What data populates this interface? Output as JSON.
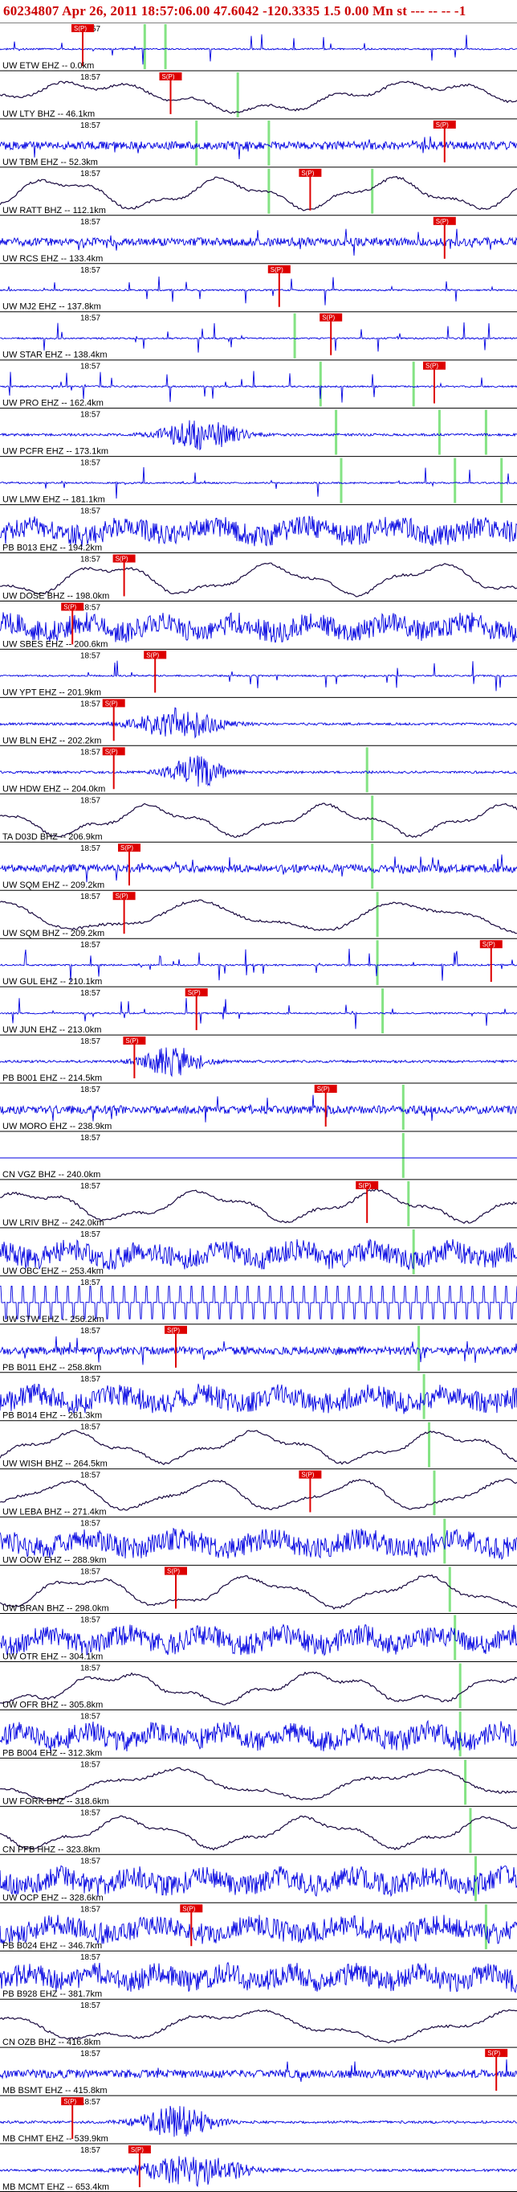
{
  "header": {
    "event_id": "60234807",
    "date": "Apr 26, 2011",
    "time": "18:57:06.00",
    "lat": "47.6042",
    "lon": "-120.3335",
    "depth": "1.5",
    "mag": "0.00",
    "mag_type": "Mn",
    "status": "st --- -- -- --",
    "flag": "-1",
    "full_text": "60234807 Apr 26, 2011 18:57:06.00   47.6042 -120.3335  1.5 0.00 Mn st --- -- --  -1"
  },
  "colors": {
    "background": "#ffffff",
    "trace_blue": "#0000e0",
    "trace_dark": "#1a0a40",
    "pick_green": "#66dd66",
    "pick_red": "#dd0000",
    "divider": "#000000",
    "header_red": "#cc0000"
  },
  "time_label": "18:57",
  "pick_label": "S(P)",
  "chart_data": {
    "type": "seismogram-stack",
    "title": "60234807 Apr 26, 2011 18:57:06.00   47.6042 -120.3335  1.5 0.00 Mn st --- -- --  -1",
    "xlabel": "",
    "ylabel": "",
    "channels": [
      {
        "label": "UW ETW EHZ -- 0.0km",
        "style": "spiky",
        "color": "blue",
        "red_picks": [
          0.16
        ],
        "green_picks": [
          0.28,
          0.32
        ]
      },
      {
        "label": "UW LTY BHZ -- 46.1km",
        "style": "long",
        "color": "dark",
        "red_picks": [
          0.33
        ],
        "green_picks": [
          0.46
        ]
      },
      {
        "label": "UW TBM EHZ -- 52.3km",
        "style": "noise",
        "color": "blue",
        "red_picks": [
          0.86
        ],
        "green_picks": [
          0.38,
          0.52
        ]
      },
      {
        "label": "UW RATT BHZ -- 112.1km",
        "style": "long",
        "color": "dark",
        "red_picks": [
          0.6
        ],
        "green_picks": [
          0.52,
          0.72
        ]
      },
      {
        "label": "UW RCS EHZ -- 133.4km",
        "style": "noise",
        "color": "blue",
        "red_picks": [
          0.86
        ],
        "green_picks": []
      },
      {
        "label": "UW MJ2 EHZ -- 137.8km",
        "style": "spiky",
        "color": "blue",
        "red_picks": [
          0.54
        ],
        "green_picks": []
      },
      {
        "label": "UW STAR EHZ -- 138.4km",
        "style": "spiky",
        "color": "blue",
        "red_picks": [
          0.64
        ],
        "green_picks": [
          0.57
        ]
      },
      {
        "label": "UW PRO EHZ -- 162.4km",
        "style": "spiky",
        "color": "blue",
        "red_picks": [
          0.84
        ],
        "green_picks": [
          0.62,
          0.8
        ]
      },
      {
        "label": "UW PCFR EHZ -- 173.1km",
        "style": "bursts",
        "color": "blue",
        "red_picks": [],
        "green_picks": [
          0.65,
          0.85,
          0.94
        ]
      },
      {
        "label": "UW LMW EHZ -- 181.1km",
        "style": "spiky",
        "color": "blue",
        "red_picks": [],
        "green_picks": [
          0.66,
          0.88,
          0.97
        ]
      },
      {
        "label": "PB B013 EHZ -- 194.2km",
        "style": "dense",
        "color": "blue",
        "red_picks": [],
        "green_picks": []
      },
      {
        "label": "UW DOSE BHZ -- 198.0km",
        "style": "long",
        "color": "dark",
        "red_picks": [
          0.24
        ],
        "green_picks": []
      },
      {
        "label": "UW SBES EHZ -- 200.6km",
        "style": "dense",
        "color": "blue",
        "red_picks": [
          0.14
        ],
        "green_picks": []
      },
      {
        "label": "UW YPT EHZ -- 201.9km",
        "style": "spiky",
        "color": "blue",
        "red_picks": [
          0.3
        ],
        "green_picks": []
      },
      {
        "label": "UW BLN EHZ -- 202.2km",
        "style": "bursts",
        "color": "blue",
        "red_picks": [
          0.22
        ],
        "green_picks": []
      },
      {
        "label": "UW HDW EHZ -- 204.0km",
        "style": "bursts",
        "color": "blue",
        "red_picks": [
          0.22
        ],
        "green_picks": [
          0.71
        ]
      },
      {
        "label": "TA D03D BHZ -- 206.9km",
        "style": "long",
        "color": "dark",
        "red_picks": [],
        "green_picks": [
          0.72
        ]
      },
      {
        "label": "UW SQM EHZ -- 209.2km",
        "style": "noise",
        "color": "blue",
        "red_picks": [
          0.25
        ],
        "green_picks": [
          0.72
        ]
      },
      {
        "label": "UW SQM BHZ -- 209.2km",
        "style": "long",
        "color": "dark",
        "red_picks": [
          0.24
        ],
        "green_picks": [
          0.73
        ]
      },
      {
        "label": "UW GUL EHZ -- 210.1km",
        "style": "spiky",
        "color": "blue",
        "red_picks": [
          0.95
        ],
        "green_picks": [
          0.73
        ]
      },
      {
        "label": "UW JUN EHZ -- 213.0km",
        "style": "spiky",
        "color": "blue",
        "red_picks": [
          0.38
        ],
        "green_picks": [
          0.74
        ]
      },
      {
        "label": "PB B001 EHZ -- 214.5km",
        "style": "bursts",
        "color": "blue",
        "red_picks": [
          0.26
        ],
        "green_picks": []
      },
      {
        "label": "UW MORO EHZ -- 238.9km",
        "style": "noise",
        "color": "blue",
        "red_picks": [
          0.63
        ],
        "green_picks": [
          0.78
        ]
      },
      {
        "label": "CN VGZ BHZ -- 240.0km",
        "style": "flat",
        "color": "blue",
        "red_picks": [],
        "green_picks": [
          0.78
        ]
      },
      {
        "label": "UW LRIV BHZ -- 242.0km",
        "style": "long",
        "color": "dark",
        "red_picks": [
          0.71
        ],
        "green_picks": [
          0.79
        ]
      },
      {
        "label": "UW OBC EHZ -- 253.4km",
        "style": "dense",
        "color": "blue",
        "red_picks": [],
        "green_picks": [
          0.8
        ]
      },
      {
        "label": "UW STW EHZ -- 256.2km",
        "style": "comb",
        "color": "blue",
        "red_picks": [],
        "green_picks": []
      },
      {
        "label": "PB B011 EHZ -- 258.8km",
        "style": "noise",
        "color": "blue",
        "red_picks": [
          0.34
        ],
        "green_picks": [
          0.81
        ]
      },
      {
        "label": "PB B014 EHZ -- 261.3km",
        "style": "dense",
        "color": "blue",
        "red_picks": [],
        "green_picks": [
          0.82
        ]
      },
      {
        "label": "UW WISH BHZ -- 264.5km",
        "style": "long",
        "color": "dark",
        "red_picks": [],
        "green_picks": [
          0.83
        ]
      },
      {
        "label": "UW LEBA BHZ -- 271.4km",
        "style": "long",
        "color": "dark",
        "red_picks": [
          0.6
        ],
        "green_picks": [
          0.84
        ]
      },
      {
        "label": "UW OOW EHZ -- 288.9km",
        "style": "dense",
        "color": "blue",
        "red_picks": [],
        "green_picks": [
          0.86
        ]
      },
      {
        "label": "UW BRAN BHZ -- 298.0km",
        "style": "long",
        "color": "dark",
        "red_picks": [
          0.34
        ],
        "green_picks": [
          0.87
        ]
      },
      {
        "label": "UW OTR EHZ -- 304.1km",
        "style": "dense",
        "color": "blue",
        "red_picks": [],
        "green_picks": [
          0.88
        ]
      },
      {
        "label": "UW OFR BHZ -- 305.8km",
        "style": "long",
        "color": "dark",
        "red_picks": [],
        "green_picks": [
          0.89
        ]
      },
      {
        "label": "PB B004 EHZ -- 312.3km",
        "style": "dense",
        "color": "blue",
        "red_picks": [],
        "green_picks": [
          0.89
        ]
      },
      {
        "label": "UW FORK BHZ -- 318.6km",
        "style": "long",
        "color": "dark",
        "red_picks": [],
        "green_picks": [
          0.9
        ]
      },
      {
        "label": "CN PFB HHZ -- 323.8km",
        "style": "long",
        "color": "dark",
        "red_picks": [],
        "green_picks": [
          0.91
        ]
      },
      {
        "label": "UW OCP EHZ -- 328.6km",
        "style": "dense",
        "color": "blue",
        "red_picks": [],
        "green_picks": [
          0.92
        ]
      },
      {
        "label": "PB B024 EHZ -- 346.7km",
        "style": "dense",
        "color": "blue",
        "red_picks": [
          0.37
        ],
        "green_picks": [
          0.94
        ]
      },
      {
        "label": "PB B928 EHZ -- 381.7km",
        "style": "dense",
        "color": "blue",
        "red_picks": [],
        "green_picks": []
      },
      {
        "label": "CN OZB BHZ -- 416.8km",
        "style": "long",
        "color": "dark",
        "red_picks": [],
        "green_picks": []
      },
      {
        "label": "MB BSMT EHZ -- 415.8km",
        "style": "noise",
        "color": "blue",
        "red_picks": [
          0.96
        ],
        "green_picks": []
      },
      {
        "label": "MB CHMT EHZ -- 539.9km",
        "style": "bursts",
        "color": "blue",
        "red_picks": [
          0.14
        ],
        "green_picks": []
      },
      {
        "label": "MB MCMT EHZ -- 653.4km",
        "style": "bursts",
        "color": "blue",
        "red_picks": [
          0.27
        ],
        "green_picks": []
      }
    ]
  }
}
